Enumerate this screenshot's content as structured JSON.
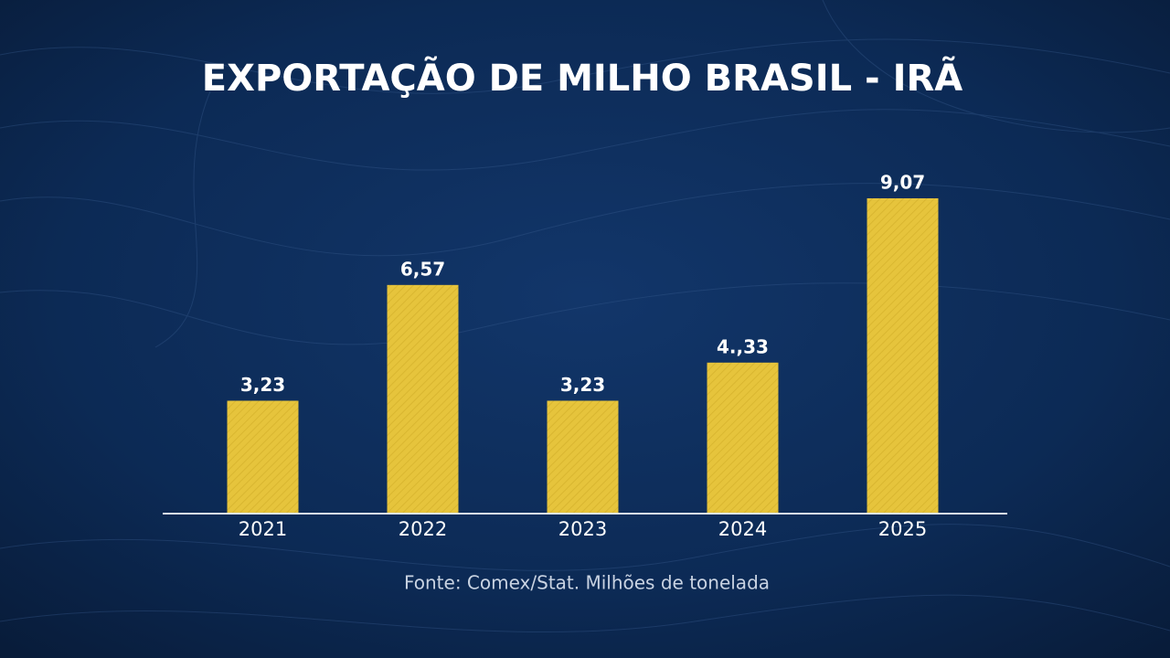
{
  "chart_data": {
    "type": "bar",
    "title": "EXPORTAÇÃO DE MILHO BRASIL - IRÃ",
    "categories": [
      "2021",
      "2022",
      "2023",
      "2024",
      "2025"
    ],
    "values": [
      3.23,
      6.57,
      3.23,
      4.33,
      9.07
    ],
    "value_labels": [
      "3,23",
      "6,57",
      "3,23",
      "4.,33",
      "9,07"
    ],
    "color": "#e6c43c",
    "source": "Fonte: Comex/Stat. Milhões de tonelada"
  }
}
